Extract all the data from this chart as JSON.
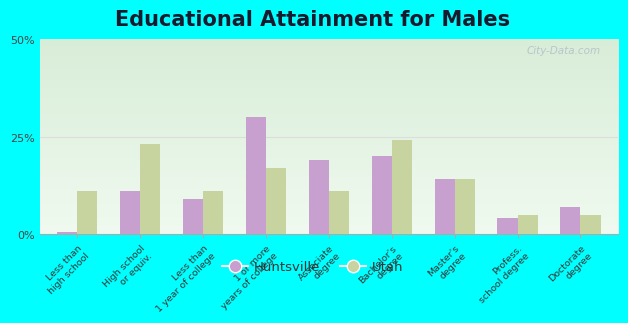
{
  "title": "Educational Attainment for Males",
  "categories": [
    "Less than\nhigh school",
    "High school\nor equiv.",
    "Less than\n1 year of college",
    "1 or more\nyears of college",
    "Associate\ndegree",
    "Bachelor's\ndegree",
    "Master's\ndegree",
    "Profess.\nschool degree",
    "Doctorate\ndegree"
  ],
  "huntsville": [
    0.5,
    11.0,
    9.0,
    30.0,
    19.0,
    20.0,
    14.0,
    4.0,
    7.0
  ],
  "utah": [
    11.0,
    23.0,
    11.0,
    17.0,
    11.0,
    24.0,
    14.0,
    5.0,
    5.0
  ],
  "huntsville_color": "#c8a0d0",
  "utah_color": "#c8d4a0",
  "outer_bg": "#00ffff",
  "plot_bg_top": "#d8edd8",
  "plot_bg_bottom": "#f0faf0",
  "ylim": [
    0,
    50
  ],
  "yticks": [
    0,
    25,
    50
  ],
  "ytick_labels": [
    "0%",
    "25%",
    "50%"
  ],
  "title_fontsize": 15,
  "legend_huntsville": "Huntsville",
  "legend_utah": "Utah",
  "watermark": "City-Data.com"
}
